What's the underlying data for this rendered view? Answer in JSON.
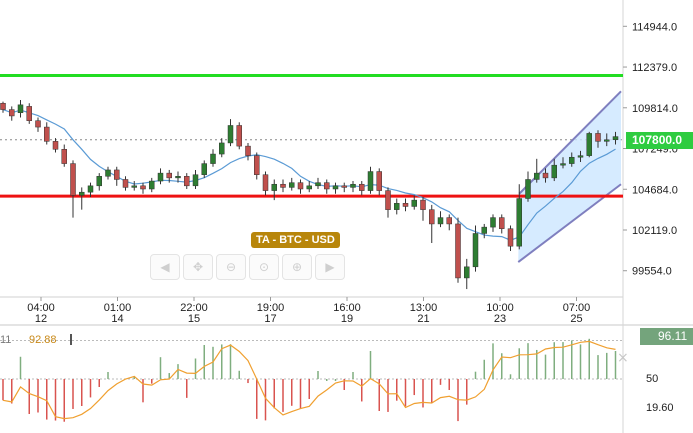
{
  "instrument_label": "TA - BTC - USD",
  "current_price_tag": "107800.0",
  "price_axis_labels": [
    "114944.0",
    "112379.0",
    "109814.0",
    "107249.0",
    "104684.0",
    "102119.0",
    "99554.0"
  ],
  "time_axis": [
    {
      "time": "04:00",
      "date": "12"
    },
    {
      "time": "01:00",
      "date": "14"
    },
    {
      "time": "22:00",
      "date": "15"
    },
    {
      "time": "19:00",
      "date": "17"
    },
    {
      "time": "16:00",
      "date": "19"
    },
    {
      "time": "13:00",
      "date": "21"
    },
    {
      "time": "10:00",
      "date": "23"
    },
    {
      "time": "07:00",
      "date": "25"
    }
  ],
  "nav_buttons": [
    {
      "name": "scroll-left-icon",
      "glyph": "◀"
    },
    {
      "name": "pan-left-icon",
      "glyph": "✥"
    },
    {
      "name": "zoom-out-icon",
      "glyph": "⊖"
    },
    {
      "name": "zoom-reset-icon",
      "glyph": "⊙"
    },
    {
      "name": "zoom-in-icon",
      "glyph": "⊕"
    },
    {
      "name": "scroll-right-icon",
      "glyph": "▶"
    }
  ],
  "oscillator": {
    "value_left_1": "11",
    "value_left_2": "92.88",
    "current_tag": "96.11",
    "axis_labels": [
      "50",
      "19.60"
    ],
    "close_glyph": "×"
  },
  "colors": {
    "resistance_line": "#22dd22",
    "support_line": "#ee1111",
    "bull_candle": "#2e7d32",
    "bear_candle": "#c0504d",
    "moving_average": "#5b9bd5",
    "channel_fill": "#cce6ff",
    "channel_edge": "#7f7fbf",
    "price_tag": "#2ecc40",
    "osc_line": "#f0a030"
  },
  "chart_data": {
    "type": "candlestick",
    "resistance_level": 111850,
    "support_level": 104250,
    "current_price": 107800,
    "ylim": [
      97900,
      116600
    ],
    "candles": [
      [
        110100,
        109700,
        110200,
        109500
      ],
      [
        109700,
        109300,
        109900,
        109000
      ],
      [
        109500,
        110000,
        110300,
        109200
      ],
      [
        109900,
        109000,
        110100,
        108800
      ],
      [
        109000,
        108600,
        109200,
        108300
      ],
      [
        108600,
        107700,
        108900,
        107500
      ],
      [
        107700,
        107200,
        107900,
        107000
      ],
      [
        107200,
        106300,
        107500,
        106100
      ],
      [
        106300,
        104300,
        106500,
        102900
      ],
      [
        104300,
        104500,
        104800,
        103400
      ],
      [
        104500,
        104900,
        105100,
        104200
      ],
      [
        104900,
        105500,
        105700,
        104600
      ],
      [
        105500,
        105900,
        106100,
        105300
      ],
      [
        105900,
        105300,
        106100,
        104900
      ],
      [
        105300,
        104800,
        105500,
        104600
      ],
      [
        104800,
        104900,
        105200,
        104600
      ],
      [
        104900,
        104700,
        105100,
        104400
      ],
      [
        104700,
        105200,
        105400,
        104500
      ],
      [
        105200,
        105700,
        106000,
        105000
      ],
      [
        105700,
        105400,
        105900,
        105100
      ],
      [
        105400,
        105500,
        105800,
        105100
      ],
      [
        105500,
        104900,
        105700,
        104700
      ],
      [
        104900,
        105600,
        105900,
        104700
      ],
      [
        105600,
        106300,
        106500,
        105400
      ],
      [
        106300,
        106900,
        107200,
        106100
      ],
      [
        106900,
        107600,
        107900,
        106700
      ],
      [
        107600,
        108700,
        109100,
        107400
      ],
      [
        108700,
        107400,
        108900,
        107200
      ],
      [
        107400,
        106800,
        107600,
        106500
      ],
      [
        106800,
        105600,
        107000,
        105300
      ],
      [
        105600,
        104600,
        105800,
        104300
      ],
      [
        104600,
        105000,
        105300,
        104000
      ],
      [
        105000,
        104800,
        105300,
        104500
      ],
      [
        104800,
        105100,
        105400,
        104600
      ],
      [
        105100,
        104700,
        105300,
        104400
      ],
      [
        104700,
        104900,
        105200,
        104500
      ],
      [
        104900,
        105100,
        105400,
        104700
      ],
      [
        105100,
        104700,
        105300,
        104400
      ],
      [
        104700,
        104900,
        105100,
        104400
      ],
      [
        104900,
        104800,
        105100,
        104500
      ],
      [
        104800,
        105000,
        105200,
        104500
      ],
      [
        105000,
        104600,
        105200,
        104300
      ],
      [
        104600,
        105800,
        106100,
        104400
      ],
      [
        105800,
        104600,
        106000,
        104300
      ],
      [
        104600,
        103400,
        104800,
        102900
      ],
      [
        103400,
        103800,
        104100,
        103100
      ],
      [
        103800,
        103600,
        104100,
        103300
      ],
      [
        103600,
        104000,
        104300,
        103400
      ],
      [
        104000,
        103400,
        104200,
        102700
      ],
      [
        103400,
        102500,
        103700,
        101300
      ],
      [
        102500,
        102900,
        103300,
        102300
      ],
      [
        102900,
        102500,
        103100,
        102100
      ],
      [
        102500,
        99100,
        102900,
        98800
      ],
      [
        99100,
        99800,
        100300,
        98400
      ],
      [
        99800,
        101900,
        102400,
        99500
      ],
      [
        101900,
        102300,
        102500,
        101600
      ],
      [
        102300,
        102900,
        103100,
        102000
      ],
      [
        102900,
        102200,
        103100,
        101900
      ],
      [
        102200,
        101100,
        102400,
        100800
      ],
      [
        101100,
        104100,
        105000,
        100900
      ],
      [
        104100,
        105300,
        105800,
        103900
      ],
      [
        105300,
        105700,
        106600,
        105100
      ],
      [
        105700,
        105400,
        106000,
        105100
      ],
      [
        105400,
        106200,
        106600,
        105200
      ],
      [
        106200,
        106300,
        106700,
        106000
      ],
      [
        106300,
        106700,
        107000,
        106100
      ],
      [
        106700,
        106800,
        107100,
        106400
      ],
      [
        106800,
        108200,
        108300,
        106700
      ],
      [
        108200,
        107700,
        108400,
        107300
      ],
      [
        107700,
        107800,
        108200,
        107400
      ],
      [
        107800,
        108000,
        108300,
        107500
      ]
    ],
    "oscillator_axis": [
      0,
      100
    ]
  }
}
